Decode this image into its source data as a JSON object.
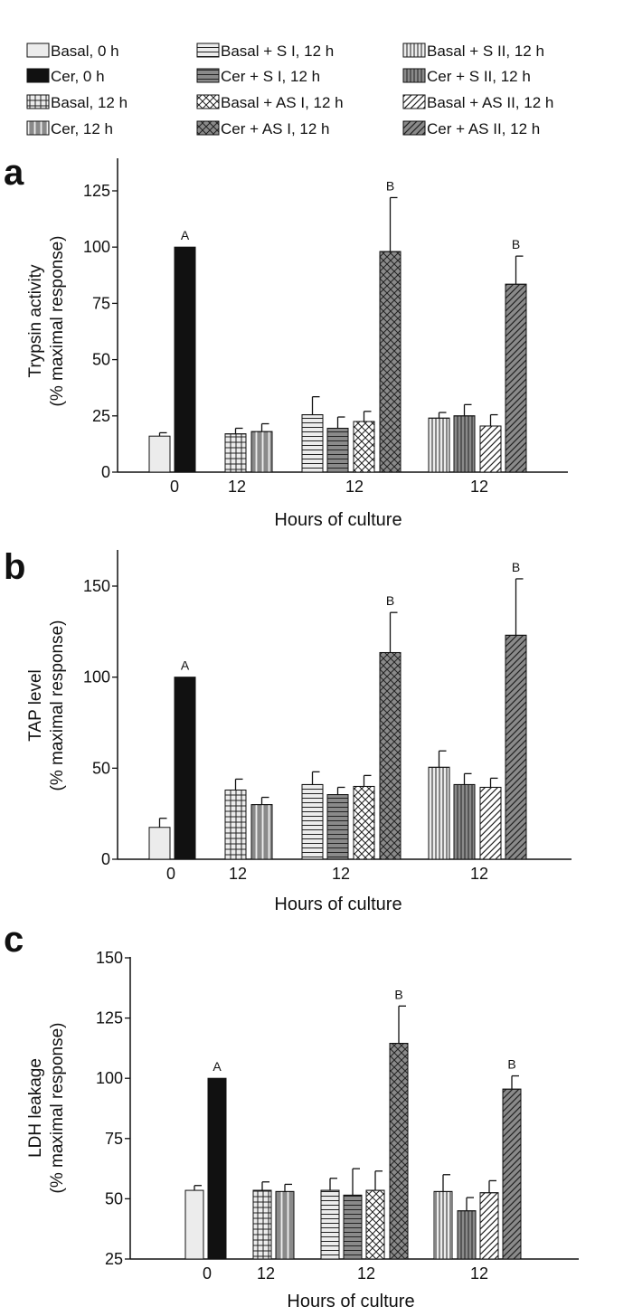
{
  "legend": [
    {
      "key": "basal0",
      "label": "Basal, 0 h",
      "fill": "#ececec",
      "pattern": "none"
    },
    {
      "key": "cer0",
      "label": "Cer, 0 h",
      "fill": "#111111",
      "pattern": "none"
    },
    {
      "key": "basal12",
      "label": "Basal, 12 h",
      "fill": "#ececec",
      "pattern": "grid"
    },
    {
      "key": "cer12",
      "label": "Cer, 12 h",
      "fill": "#8a8a8a",
      "pattern": "vgap"
    },
    {
      "key": "basalSI",
      "label": "Basal + S I, 12 h",
      "fill": "#ececec",
      "pattern": "hlines"
    },
    {
      "key": "cerSI",
      "label": "Cer + S I, 12 h",
      "fill": "#8a8a8a",
      "pattern": "hlines"
    },
    {
      "key": "basalASI",
      "label": "Basal + AS I, 12 h",
      "fill": "#ffffff",
      "pattern": "crosshatch"
    },
    {
      "key": "cerASI",
      "label": "Cer + AS I, 12 h",
      "fill": "#8a8a8a",
      "pattern": "crosshatch"
    },
    {
      "key": "basalSII",
      "label": "Basal + S II, 12 h",
      "fill": "#ececec",
      "pattern": "vlines"
    },
    {
      "key": "cerSII",
      "label": "Cer + S II, 12 h",
      "fill": "#8a8a8a",
      "pattern": "vlines"
    },
    {
      "key": "basalASII",
      "label": "Basal + AS II, 12 h",
      "fill": "#ffffff",
      "pattern": "diag"
    },
    {
      "key": "cerASII",
      "label": "Cer + AS II, 12 h",
      "fill": "#8a8a8a",
      "pattern": "diag"
    }
  ],
  "chart_data": [
    {
      "panel": "a",
      "type": "bar",
      "ylabel": "Trypsin activity",
      "ylabel2": "(% maximal response)",
      "xlabel": "Hours of culture",
      "ylim": [
        0,
        140
      ],
      "yticks": [
        0,
        25,
        50,
        75,
        100,
        125
      ],
      "groups": [
        "0",
        "12",
        "12",
        "12"
      ],
      "bars": [
        {
          "series": "basal0",
          "group": 0,
          "value": 16,
          "error": 1.5,
          "sig": ""
        },
        {
          "series": "cer0",
          "group": 0,
          "value": 100,
          "error": 0,
          "sig": "A"
        },
        {
          "series": "basal12",
          "group": 1,
          "value": 17,
          "error": 2.5,
          "sig": ""
        },
        {
          "series": "cer12",
          "group": 1,
          "value": 18,
          "error": 3.5,
          "sig": ""
        },
        {
          "series": "basalSI",
          "group": 2,
          "value": 25.5,
          "error": 8,
          "sig": ""
        },
        {
          "series": "cerSI",
          "group": 2,
          "value": 19.5,
          "error": 5,
          "sig": ""
        },
        {
          "series": "basalASI",
          "group": 2,
          "value": 22.5,
          "error": 4.5,
          "sig": ""
        },
        {
          "series": "cerASI",
          "group": 2,
          "value": 98,
          "error": 24,
          "sig": "B"
        },
        {
          "series": "basalSII",
          "group": 3,
          "value": 24,
          "error": 2.5,
          "sig": ""
        },
        {
          "series": "cerSII",
          "group": 3,
          "value": 25,
          "error": 5,
          "sig": ""
        },
        {
          "series": "basalASII",
          "group": 3,
          "value": 20.5,
          "error": 5,
          "sig": ""
        },
        {
          "series": "cerASII",
          "group": 3,
          "value": 83.5,
          "error": 12.5,
          "sig": "B"
        }
      ]
    },
    {
      "panel": "b",
      "type": "bar",
      "ylabel": "TAP level",
      "ylabel2": "(% maximal response)",
      "xlabel": "Hours of culture",
      "ylim": [
        0,
        170
      ],
      "yticks": [
        0,
        50,
        100,
        150
      ],
      "groups": [
        "0",
        "12",
        "12",
        "12"
      ],
      "bars": [
        {
          "series": "basal0",
          "group": 0,
          "value": 17.5,
          "error": 5,
          "sig": ""
        },
        {
          "series": "cer0",
          "group": 0,
          "value": 100,
          "error": 0,
          "sig": "A"
        },
        {
          "series": "basal12",
          "group": 1,
          "value": 38,
          "error": 6,
          "sig": ""
        },
        {
          "series": "cer12",
          "group": 1,
          "value": 30,
          "error": 4,
          "sig": ""
        },
        {
          "series": "basalSI",
          "group": 2,
          "value": 41,
          "error": 7,
          "sig": ""
        },
        {
          "series": "cerSI",
          "group": 2,
          "value": 35.5,
          "error": 4,
          "sig": ""
        },
        {
          "series": "basalASI",
          "group": 2,
          "value": 40,
          "error": 6,
          "sig": ""
        },
        {
          "series": "cerASI",
          "group": 2,
          "value": 113.5,
          "error": 22,
          "sig": "B"
        },
        {
          "series": "basalSII",
          "group": 3,
          "value": 50.5,
          "error": 9,
          "sig": ""
        },
        {
          "series": "cerSII",
          "group": 3,
          "value": 41,
          "error": 6,
          "sig": ""
        },
        {
          "series": "basalASII",
          "group": 3,
          "value": 39.5,
          "error": 5,
          "sig": ""
        },
        {
          "series": "cerASII",
          "group": 3,
          "value": 123,
          "error": 31,
          "sig": "B"
        }
      ]
    },
    {
      "panel": "c",
      "type": "bar",
      "ylabel": "LDH leakage",
      "ylabel2": "(% maximal response)",
      "xlabel": "Hours of culture",
      "ylim": [
        25,
        150
      ],
      "yticks": [
        25,
        50,
        75,
        100,
        125,
        150
      ],
      "groups": [
        "0",
        "12",
        "12",
        "12"
      ],
      "bars": [
        {
          "series": "basal0",
          "group": 0,
          "value": 53.5,
          "error": 2,
          "sig": ""
        },
        {
          "series": "cer0",
          "group": 0,
          "value": 100,
          "error": 0,
          "sig": "A"
        },
        {
          "series": "basal12",
          "group": 1,
          "value": 53.5,
          "error": 3.5,
          "sig": ""
        },
        {
          "series": "cer12",
          "group": 1,
          "value": 53,
          "error": 3,
          "sig": ""
        },
        {
          "series": "basalSI",
          "group": 2,
          "value": 53.5,
          "error": 5,
          "sig": ""
        },
        {
          "series": "cerSI",
          "group": 2,
          "value": 51.5,
          "error": 11,
          "sig": ""
        },
        {
          "series": "basalASI",
          "group": 2,
          "value": 53.5,
          "error": 8,
          "sig": ""
        },
        {
          "series": "cerASI",
          "group": 2,
          "value": 114.5,
          "error": 15.5,
          "sig": "B"
        },
        {
          "series": "basalSII",
          "group": 3,
          "value": 53,
          "error": 7,
          "sig": ""
        },
        {
          "series": "cerSII",
          "group": 3,
          "value": 45,
          "error": 5.5,
          "sig": ""
        },
        {
          "series": "basalASII",
          "group": 3,
          "value": 52.5,
          "error": 5,
          "sig": ""
        },
        {
          "series": "cerASII",
          "group": 3,
          "value": 95.5,
          "error": 5.5,
          "sig": "B"
        }
      ]
    }
  ]
}
